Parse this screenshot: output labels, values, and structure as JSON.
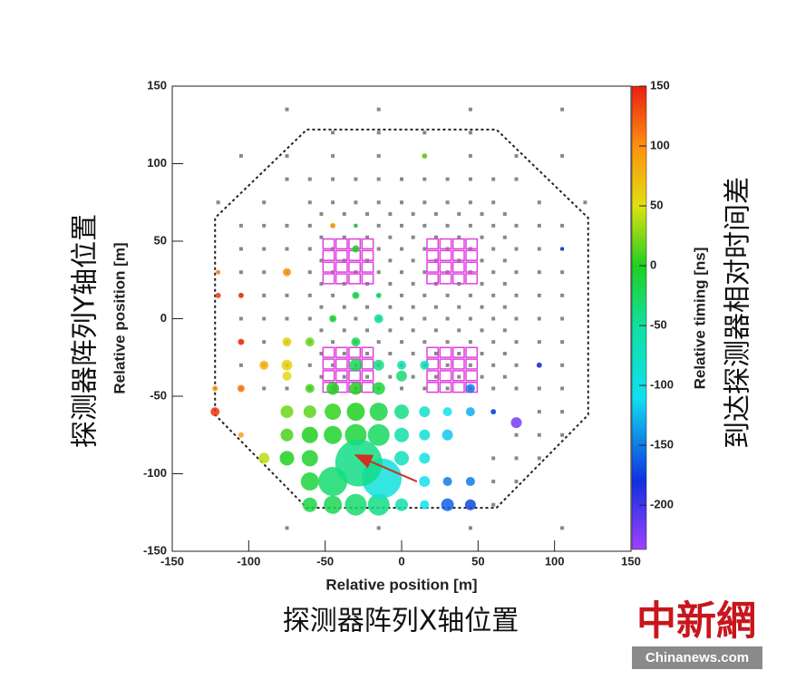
{
  "chart_data": {
    "type": "bubble",
    "xlabel": "Relative position [m]",
    "ylabel": "Relative position [m]",
    "colorbar_label": "Relative timing [ns]",
    "xlabel_cn": "探测器阵列X轴位置",
    "ylabel_cn": "探测器阵列Y轴位置",
    "colorbar_label_cn": "到达探测器相对时间差",
    "watermark": "中新網",
    "watermark_site": "Chinanews.com",
    "xlim": [
      -150,
      150
    ],
    "ylim": [
      -150,
      150
    ],
    "xticks": [
      -150,
      -100,
      -50,
      0,
      50,
      100,
      150
    ],
    "yticks": [
      -150,
      -100,
      -50,
      0,
      50,
      100,
      150
    ],
    "zlim": [
      -237,
      150
    ],
    "zticks": [
      -200,
      -150,
      -100,
      -50,
      0,
      50,
      100,
      150
    ],
    "colormap": [
      {
        "value": -237,
        "color": "#a040ff"
      },
      {
        "value": -180,
        "color": "#1030e0"
      },
      {
        "value": -110,
        "color": "#10e0f0"
      },
      {
        "value": -50,
        "color": "#10e0a0"
      },
      {
        "value": 0,
        "color": "#20d020"
      },
      {
        "value": 50,
        "color": "#e0e010"
      },
      {
        "value": 100,
        "color": "#ff9010"
      },
      {
        "value": 150,
        "color": "#e82010"
      }
    ],
    "inactive_color": "#888888",
    "outline": {
      "x": [
        -62,
        62,
        122,
        122,
        62,
        -62,
        -122,
        -122,
        -62
      ],
      "y": [
        122,
        122,
        65,
        -62,
        -122,
        -122,
        -62,
        65,
        122
      ]
    },
    "boxes": [
      {
        "x": [
          -52,
          -18
        ],
        "y": [
          22,
          52
        ]
      },
      {
        "x": [
          16,
          50
        ],
        "y": [
          22,
          52
        ]
      },
      {
        "x": [
          -52,
          -18
        ],
        "y": [
          -48,
          -18
        ]
      },
      {
        "x": [
          16,
          50
        ],
        "y": [
          -48,
          -18
        ]
      }
    ],
    "box_color": "#e040e0",
    "arrow": {
      "x": [
        10,
        -30
      ],
      "y": [
        -105,
        -88
      ],
      "color": "#d03020"
    },
    "inactive_rows": [
      {
        "y": 135,
        "x": [
          -75,
          -15,
          45,
          105
        ]
      },
      {
        "y": 120,
        "x": [
          -45,
          -15,
          15,
          45
        ]
      },
      {
        "y": 105,
        "x": [
          -105,
          -75,
          -45,
          -15,
          15,
          45,
          75,
          105
        ]
      },
      {
        "y": 90,
        "x": [
          -75,
          -60,
          -45,
          -30,
          -15,
          0,
          15,
          30,
          45,
          60,
          75
        ]
      },
      {
        "y": 75,
        "x": [
          -120,
          -90,
          -60,
          -45,
          -30,
          -15,
          0,
          15,
          30,
          45,
          60,
          90,
          120
        ]
      },
      {
        "y": 67.5,
        "x": [
          -52.5,
          -37.5,
          -22.5,
          -7.5,
          7.5,
          22.5,
          37.5,
          52.5,
          67.5
        ]
      },
      {
        "y": 60,
        "x": [
          -105,
          -90,
          -75,
          -60,
          -45,
          -30,
          -15,
          0,
          15,
          30,
          45,
          60,
          75,
          90,
          105
        ]
      },
      {
        "y": 52.5,
        "x": [
          -52.5,
          -37.5,
          -22.5,
          -7.5,
          7.5,
          22.5,
          37.5,
          52.5,
          67.5
        ]
      },
      {
        "y": 45,
        "x": [
          -105,
          -90,
          -75,
          -60,
          -45,
          -30,
          -15,
          0,
          15,
          30,
          45,
          60,
          75,
          90,
          105
        ]
      },
      {
        "y": 37.5,
        "x": [
          -52.5,
          -37.5,
          -22.5,
          -7.5,
          7.5,
          22.5,
          37.5,
          52.5,
          67.5
        ]
      },
      {
        "y": 30,
        "x": [
          -105,
          -90,
          -75,
          -60,
          -45,
          -30,
          -15,
          0,
          15,
          30,
          45,
          60,
          75,
          90,
          105
        ]
      },
      {
        "y": 22.5,
        "x": [
          -52.5,
          -37.5,
          -22.5,
          -7.5,
          7.5,
          22.5,
          37.5,
          52.5,
          67.5
        ]
      },
      {
        "y": 15,
        "x": [
          -105,
          -90,
          -75,
          -60,
          -45,
          -30,
          -15,
          0,
          15,
          30,
          45,
          60,
          75,
          90,
          105
        ]
      },
      {
        "y": 7.5,
        "x": [
          -52.5,
          -37.5,
          -22.5,
          -7.5,
          7.5,
          22.5,
          37.5,
          52.5,
          67.5
        ]
      },
      {
        "y": 0,
        "x": [
          -105,
          -90,
          -75,
          -60,
          -45,
          -30,
          -15,
          0,
          15,
          30,
          45,
          60,
          75,
          90,
          105
        ]
      },
      {
        "y": -7.5,
        "x": [
          -52.5,
          -37.5,
          -22.5,
          -7.5,
          7.5,
          22.5,
          37.5,
          52.5,
          67.5
        ]
      },
      {
        "y": -15,
        "x": [
          -105,
          -90,
          -75,
          -60,
          -45,
          -30,
          -15,
          0,
          15,
          30,
          45,
          60,
          75,
          90,
          105
        ]
      },
      {
        "y": -22.5,
        "x": [
          -52.5,
          -37.5,
          -22.5,
          -7.5,
          7.5,
          22.5,
          37.5,
          52.5,
          67.5
        ]
      },
      {
        "y": -30,
        "x": [
          -105,
          -90,
          -75,
          -60,
          -45,
          -30,
          -15,
          0,
          15,
          30,
          45,
          60,
          75,
          90,
          105
        ]
      },
      {
        "y": -37.5,
        "x": [
          -52.5,
          -37.5,
          -22.5,
          -7.5,
          7.5,
          22.5,
          37.5,
          52.5,
          67.5
        ]
      },
      {
        "y": -45,
        "x": [
          -105,
          -90,
          -75,
          -60,
          -45,
          -30,
          -15,
          0,
          15,
          30,
          45,
          60,
          75,
          90,
          105
        ]
      },
      {
        "y": -60,
        "x": [
          60,
          90,
          105
        ]
      },
      {
        "y": -75,
        "x": [
          75,
          90,
          105
        ]
      },
      {
        "y": -90,
        "x": [
          60,
          75,
          90
        ]
      },
      {
        "y": -105,
        "x": [
          60,
          75
        ]
      },
      {
        "y": -120,
        "x": [
          60
        ]
      },
      {
        "y": -135,
        "x": [
          -75,
          -15,
          45,
          105
        ]
      }
    ],
    "points": {
      "x": [
        -120,
        -120,
        -122,
        -122,
        -105,
        -105,
        -105,
        -105,
        -90,
        -90,
        -75,
        -75,
        -75,
        -75,
        -75,
        -75,
        -75,
        -60,
        -60,
        -60,
        -60,
        -60,
        -60,
        -45,
        -45,
        -45,
        -45,
        -45,
        -30,
        -30,
        -30,
        -28,
        -30,
        -15,
        -15,
        -15,
        -13,
        -15,
        0,
        0,
        0,
        0,
        0,
        15,
        15,
        15,
        15,
        15,
        30,
        30,
        30,
        30,
        45,
        45,
        45,
        45,
        60,
        75,
        90,
        105,
        -30,
        -30,
        -15,
        0,
        15,
        -15,
        -45,
        -30,
        -15,
        -30,
        -45,
        15,
        -30,
        -60
      ],
      "y": [
        30,
        15,
        -45,
        -60,
        15,
        -15,
        -45,
        -75,
        -30,
        -90,
        30,
        -15,
        -30,
        -37,
        -60,
        -75,
        -90,
        -60,
        -45,
        -75,
        -90,
        -105,
        -120,
        -45,
        -60,
        -75,
        -105,
        -120,
        -45,
        -60,
        -75,
        -93,
        -120,
        -45,
        -60,
        -75,
        -103,
        -120,
        -37,
        -60,
        -75,
        -90,
        -120,
        -60,
        -75,
        -90,
        -105,
        -120,
        -60,
        -75,
        -105,
        -120,
        -45,
        -60,
        -105,
        -120,
        -60,
        -67,
        -30,
        45,
        -15,
        -30,
        -30,
        -30,
        -30,
        0,
        0,
        15,
        15,
        60,
        60,
        105,
        45,
        -15
      ],
      "size": [
        2.5,
        3,
        3,
        5,
        3,
        3.5,
        4,
        3,
        5,
        6,
        4.5,
        5,
        6,
        5,
        7,
        7,
        8,
        7,
        5,
        9,
        9,
        10,
        8,
        7,
        9,
        10,
        16,
        10,
        7,
        10,
        12,
        26,
        12,
        7,
        10,
        12,
        22,
        12,
        6,
        8,
        8,
        8,
        7,
        6,
        6,
        6,
        6,
        5,
        5,
        6,
        5,
        7,
        5,
        5,
        5,
        6,
        3,
        6,
        3,
        2,
        5,
        7,
        6,
        5,
        5,
        5,
        4,
        4,
        3,
        2,
        3,
        3,
        4,
        5
      ],
      "timing": [
        110,
        140,
        100,
        140,
        140,
        140,
        110,
        90,
        80,
        40,
        100,
        60,
        60,
        55,
        20,
        10,
        0,
        15,
        10,
        0,
        -5,
        -10,
        -15,
        0,
        5,
        -5,
        -30,
        -20,
        0,
        0,
        -10,
        -40,
        -30,
        -10,
        -15,
        -25,
        -95,
        -40,
        -30,
        -40,
        -55,
        -70,
        -60,
        -80,
        -90,
        -100,
        -110,
        -110,
        -110,
        -120,
        -150,
        -160,
        -150,
        -130,
        -150,
        -170,
        -170,
        -220,
        -190,
        -180,
        -20,
        -20,
        -40,
        -60,
        -70,
        -45,
        -10,
        -20,
        -30,
        -10,
        90,
        20,
        -5,
        20
      ]
    }
  }
}
